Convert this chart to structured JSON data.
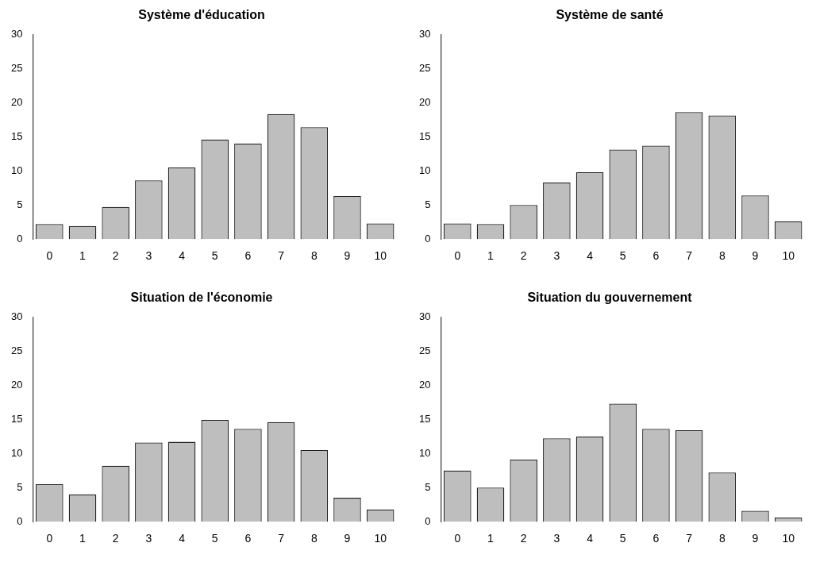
{
  "chart_data": [
    {
      "type": "bar",
      "title": "Système d'éducation",
      "categories": [
        "0",
        "1",
        "2",
        "3",
        "4",
        "5",
        "6",
        "7",
        "8",
        "9",
        "10"
      ],
      "values": [
        2.2,
        1.9,
        4.7,
        8.6,
        10.5,
        14.6,
        14.0,
        18.3,
        16.4,
        6.3,
        2.3
      ],
      "color": "#bebebe",
      "ylim": [
        0,
        30
      ],
      "yticks": [
        0,
        5,
        10,
        15,
        20,
        25,
        30
      ],
      "grid": false,
      "legend": false
    },
    {
      "type": "bar",
      "title": "Système de santé",
      "categories": [
        "0",
        "1",
        "2",
        "3",
        "4",
        "5",
        "6",
        "7",
        "8",
        "9",
        "10"
      ],
      "values": [
        2.3,
        2.2,
        5.0,
        8.3,
        9.8,
        13.1,
        13.7,
        18.6,
        18.1,
        6.4,
        2.6
      ],
      "color": "#bebebe",
      "ylim": [
        0,
        30
      ],
      "yticks": [
        0,
        5,
        10,
        15,
        20,
        25,
        30
      ],
      "grid": false,
      "legend": false
    },
    {
      "type": "bar",
      "title": "Situation de l'économie",
      "categories": [
        "0",
        "1",
        "2",
        "3",
        "4",
        "5",
        "6",
        "7",
        "8",
        "9",
        "10"
      ],
      "values": [
        5.5,
        4.0,
        8.2,
        11.6,
        11.7,
        14.9,
        13.6,
        14.6,
        10.5,
        3.5,
        1.8
      ],
      "color": "#bebebe",
      "ylim": [
        0,
        30
      ],
      "yticks": [
        0,
        5,
        10,
        15,
        20,
        25,
        30
      ],
      "grid": false,
      "legend": false
    },
    {
      "type": "bar",
      "title": "Situation du gouvernement",
      "categories": [
        "0",
        "1",
        "2",
        "3",
        "4",
        "5",
        "6",
        "7",
        "8",
        "9",
        "10"
      ],
      "values": [
        7.5,
        5.0,
        9.1,
        12.2,
        12.5,
        17.3,
        13.6,
        13.4,
        7.2,
        1.6,
        0.6
      ],
      "color": "#bebebe",
      "ylim": [
        0,
        30
      ],
      "yticks": [
        0,
        5,
        10,
        15,
        20,
        25,
        30
      ],
      "grid": false,
      "legend": false
    }
  ]
}
